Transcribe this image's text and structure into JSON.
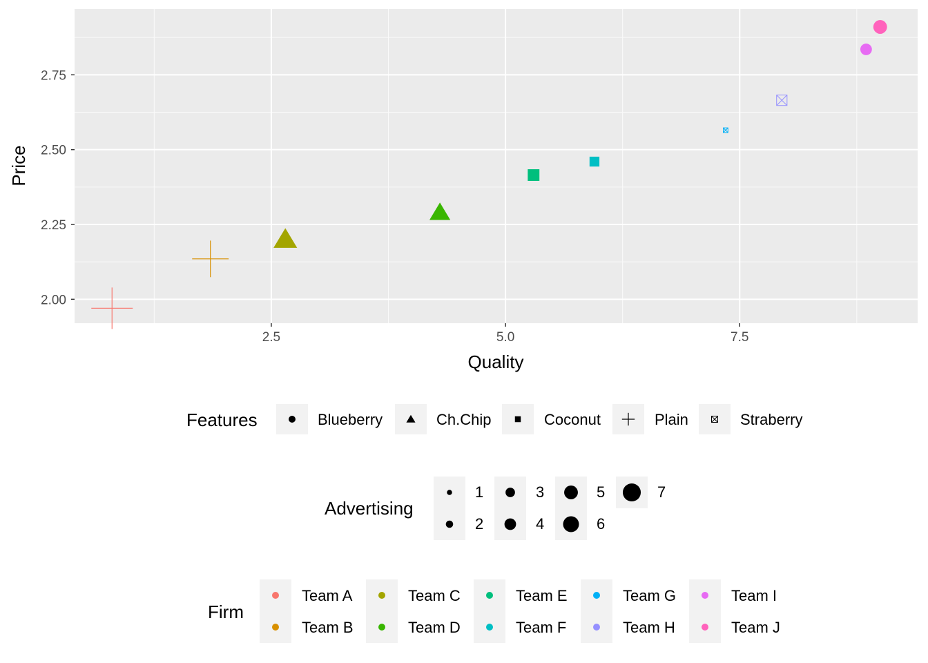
{
  "chart_data": {
    "type": "scatter",
    "xlabel": "Quality",
    "ylabel": "Price",
    "xlim": [
      0.4,
      9.4
    ],
    "ylim": [
      1.92,
      2.97
    ],
    "x_ticks": [
      2.5,
      5.0,
      7.5
    ],
    "x_tick_labels": [
      "2.5",
      "5.0",
      "7.5"
    ],
    "y_ticks": [
      2.0,
      2.25,
      2.5,
      2.75
    ],
    "y_tick_labels": [
      "2.00",
      "2.25",
      "2.50",
      "2.75"
    ],
    "grid": true,
    "legend_placement": "bottom",
    "points": [
      {
        "firm": "Team A",
        "x": 0.8,
        "y": 1.97,
        "feature": "Plain",
        "advertising": 7
      },
      {
        "firm": "Team B",
        "x": 1.85,
        "y": 2.135,
        "feature": "Plain",
        "advertising": 6
      },
      {
        "firm": "Team C",
        "x": 2.65,
        "y": 2.2,
        "feature": "Ch.Chip",
        "advertising": 7
      },
      {
        "firm": "Team D",
        "x": 4.3,
        "y": 2.29,
        "feature": "Ch.Chip",
        "advertising": 6
      },
      {
        "firm": "Team E",
        "x": 5.3,
        "y": 2.415,
        "feature": "Coconut",
        "advertising": 5
      },
      {
        "firm": "Team F",
        "x": 5.95,
        "y": 2.46,
        "feature": "Coconut",
        "advertising": 4
      },
      {
        "firm": "Team G",
        "x": 7.35,
        "y": 2.565,
        "feature": "Straberry",
        "advertising": 1
      },
      {
        "firm": "Team H",
        "x": 7.95,
        "y": 2.665,
        "feature": "Straberry",
        "advertising": 4
      },
      {
        "firm": "Team I",
        "x": 8.85,
        "y": 2.835,
        "feature": "Blueberry",
        "advertising": 4
      },
      {
        "firm": "Team J",
        "x": 9.0,
        "y": 2.91,
        "feature": "Blueberry",
        "advertising": 5
      }
    ],
    "legends": {
      "features": {
        "title": "Features",
        "items": [
          {
            "label": "Blueberry",
            "shape": "circle"
          },
          {
            "label": "Ch.Chip",
            "shape": "triangle"
          },
          {
            "label": "Coconut",
            "shape": "square"
          },
          {
            "label": "Plain",
            "shape": "plus"
          },
          {
            "label": "Straberry",
            "shape": "boxed-x"
          }
        ]
      },
      "advertising": {
        "title": "Advertising",
        "items": [
          "1",
          "2",
          "3",
          "4",
          "5",
          "6",
          "7"
        ]
      },
      "firm": {
        "title": "Firm",
        "items": [
          {
            "label": "Team A",
            "color": "#F8766D"
          },
          {
            "label": "Team B",
            "color": "#D89000"
          },
          {
            "label": "Team C",
            "color": "#A3A500"
          },
          {
            "label": "Team D",
            "color": "#39B600"
          },
          {
            "label": "Team E",
            "color": "#00BF7D"
          },
          {
            "label": "Team F",
            "color": "#00BFC4"
          },
          {
            "label": "Team G",
            "color": "#00B0F6"
          },
          {
            "label": "Team H",
            "color": "#9590FF"
          },
          {
            "label": "Team I",
            "color": "#E76BF3"
          },
          {
            "label": "Team J",
            "color": "#FF62BC"
          }
        ]
      }
    }
  }
}
